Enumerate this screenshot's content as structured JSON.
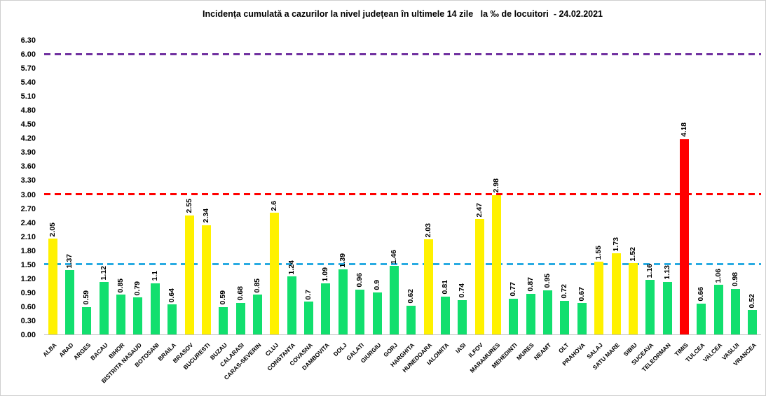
{
  "chart_data": {
    "type": "bar",
    "title": "Incidența cumulată a cazurilor la nivel județean în ultimele 14 zile   la ‰ de locuitori  - 24.02.2021",
    "xlabel": "",
    "ylabel": "",
    "ylim": [
      0,
      6.3
    ],
    "ytick_step": 0.3,
    "ytick_labels": [
      "0.00",
      "0.30",
      "0.60",
      "0.90",
      "1.20",
      "1.50",
      "1.80",
      "2.10",
      "2.40",
      "2.70",
      "3.00",
      "3.30",
      "3.60",
      "3.90",
      "4.20",
      "4.50",
      "4.80",
      "5.10",
      "5.40",
      "5.70",
      "6.00",
      "6.30"
    ],
    "grid": false,
    "legend": "none",
    "categories": [
      "ALBA",
      "ARAD",
      "ARGES",
      "BACAU",
      "BIHOR",
      "BISTRITA NASAUD",
      "BOTOSANI",
      "BRAILA",
      "BRASOV",
      "BUCURESTI",
      "BUZAU",
      "CALARASI",
      "CARAS-SEVERIN",
      "CLUJ",
      "CONSTANTA",
      "COVASNA",
      "DAMBOVITA",
      "DOLJ",
      "GALATI",
      "GIURGIU",
      "GORJ",
      "HARGHITA",
      "HUNEDOARA",
      "IALOMITA",
      "IASI",
      "ILFOV",
      "MARAMURES",
      "MEHEDINTI",
      "MURES",
      "NEAMT",
      "OLT",
      "PRAHOVA",
      "SALAJ",
      "SATU MARE",
      "SIBIU",
      "SUCEAVA",
      "TELEORMAN",
      "TIMIS",
      "TULCEA",
      "VALCEA",
      "VASLUI",
      "VRANCEA"
    ],
    "values": [
      2.05,
      1.37,
      0.59,
      1.12,
      0.85,
      0.79,
      1.1,
      0.64,
      2.55,
      2.34,
      0.59,
      0.68,
      0.85,
      2.6,
      1.24,
      0.7,
      1.09,
      1.39,
      0.96,
      0.9,
      1.46,
      0.62,
      2.03,
      0.81,
      0.74,
      2.47,
      2.98,
      0.77,
      0.87,
      0.95,
      0.72,
      0.67,
      1.55,
      1.73,
      1.52,
      1.16,
      1.13,
      4.18,
      0.66,
      1.06,
      0.98,
      0.52
    ],
    "value_labels": [
      "2.05",
      "1.37",
      "0.59",
      "1.12",
      "0.85",
      "0.79",
      "1.1",
      "0.64",
      "2.55",
      "2.34",
      "0.59",
      "0.68",
      "0.85",
      "2.6",
      "1.24",
      "0.7",
      "1.09",
      "1.39",
      "0.96",
      "0.9",
      "1.46",
      "0.62",
      "2.03",
      "0.81",
      "0.74",
      "2.47",
      "2.98",
      "0.77",
      "0.87",
      "0.95",
      "0.72",
      "0.67",
      "1.55",
      "1.73",
      "1.52",
      "1.16",
      "1.13",
      "4.18",
      "0.66",
      "1.06",
      "0.98",
      "0.52"
    ],
    "bar_color_keys": [
      "yellow",
      "green",
      "green",
      "green",
      "green",
      "green",
      "green",
      "green",
      "yellow",
      "yellow",
      "green",
      "green",
      "green",
      "yellow",
      "green",
      "green",
      "green",
      "green",
      "green",
      "green",
      "green",
      "green",
      "yellow",
      "green",
      "green",
      "yellow",
      "yellow",
      "green",
      "green",
      "green",
      "green",
      "green",
      "yellow",
      "yellow",
      "yellow",
      "green",
      "green",
      "red",
      "green",
      "green",
      "green",
      "green"
    ],
    "colors": {
      "yellow": "#FFF100",
      "green": "#12DF6E",
      "red": "#FF0000"
    },
    "reference_lines": [
      {
        "value": 6.0,
        "color": "#7030A0",
        "name": "threshold-6"
      },
      {
        "value": 3.0,
        "color": "#FF0000",
        "name": "threshold-3"
      },
      {
        "value": 1.5,
        "color": "#29ABE2",
        "name": "threshold-1-5"
      }
    ]
  }
}
